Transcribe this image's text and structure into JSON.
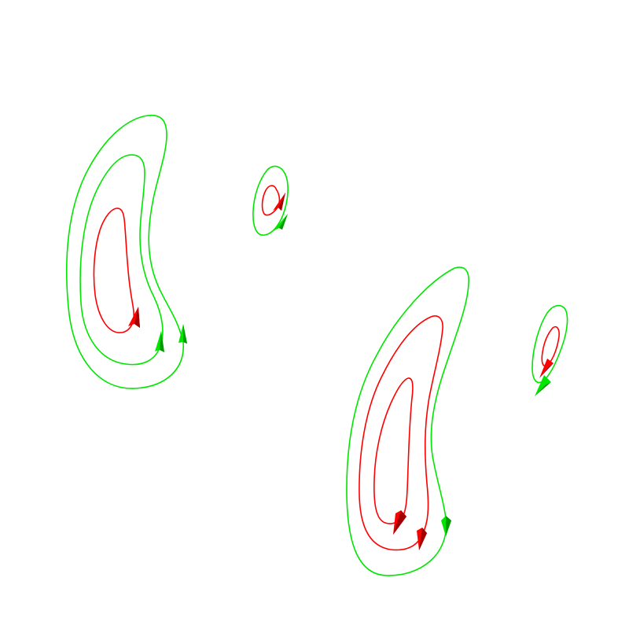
{
  "colors": {
    "background": "#ffffff",
    "green": "#00e600",
    "green_dark": "#009900",
    "red": "#ff0000",
    "red_dark": "#a00000"
  },
  "groups": [
    {
      "name": "left-crescent-group",
      "curves": [
        {
          "name": "left-outer-green-curve",
          "color": "green"
        },
        {
          "name": "left-middle-green-curve",
          "color": "green"
        },
        {
          "name": "left-inner-red-curve",
          "color": "red"
        }
      ],
      "arrows": [
        {
          "name": "left-red-arrow",
          "color": "red",
          "direction": "up"
        },
        {
          "name": "left-green-arrow-1",
          "color": "green",
          "direction": "up"
        },
        {
          "name": "left-green-arrow-2",
          "color": "green",
          "direction": "up"
        }
      ]
    },
    {
      "name": "small-loop-group-top",
      "curves": [
        {
          "name": "small-top-green-loop",
          "color": "green"
        },
        {
          "name": "small-top-red-loop",
          "color": "red"
        }
      ],
      "arrows": [
        {
          "name": "small-top-red-arrow",
          "color": "red",
          "direction": "up-right"
        },
        {
          "name": "small-top-green-arrow",
          "color": "green",
          "direction": "up-right"
        }
      ]
    },
    {
      "name": "right-crescent-group",
      "curves": [
        {
          "name": "right-outer-green-curve",
          "color": "green"
        },
        {
          "name": "right-middle-red-curve",
          "color": "red"
        },
        {
          "name": "right-inner-red-curve",
          "color": "red"
        }
      ],
      "arrows": [
        {
          "name": "right-red-arrow-1",
          "color": "red",
          "direction": "down"
        },
        {
          "name": "right-red-arrow-2",
          "color": "red",
          "direction": "down"
        },
        {
          "name": "right-green-arrow",
          "color": "green",
          "direction": "down"
        }
      ]
    },
    {
      "name": "small-loop-group-right",
      "curves": [
        {
          "name": "small-right-green-loop",
          "color": "green"
        },
        {
          "name": "small-right-red-loop",
          "color": "red"
        }
      ],
      "arrows": [
        {
          "name": "small-right-red-arrow",
          "color": "red",
          "direction": "down-left"
        },
        {
          "name": "small-right-green-arrow",
          "color": "green",
          "direction": "down-left"
        }
      ]
    }
  ]
}
